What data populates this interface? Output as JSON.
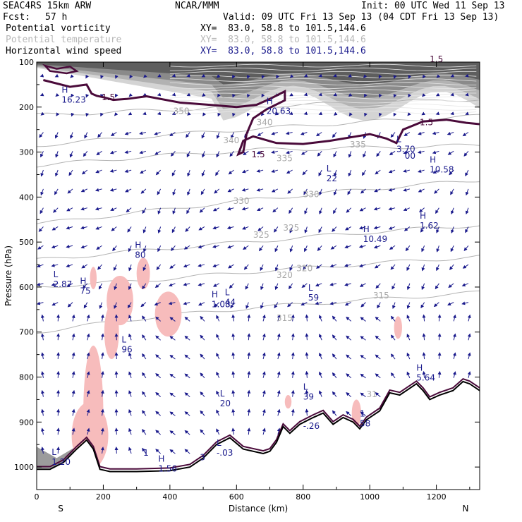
{
  "header": {
    "model": "SEAC4RS 15km ARW",
    "org": "NCAR/MMM",
    "init": "Init: 00 UTC Wed 11 Sep 13",
    "fcst_label": "Fcst:",
    "fcst_value": "57 h",
    "valid": "Valid: 09 UTC Fri 13 Sep 13 (04 CDT Fri 13 Sep 13)",
    "fields": [
      {
        "name": "Potential vorticity",
        "xy": "XY=  83.0, 58.8 to 101.5,144.6",
        "color": "#000000"
      },
      {
        "name": "Potential temperature",
        "xy": "XY=  83.0, 58.8 to 101.5,144.6",
        "color": "#b8b8b8"
      },
      {
        "name": "Horizontal wind speed",
        "xy": "XY=  83.0, 58.8 to 101.5,144.6",
        "color": "#1a1a8c"
      }
    ]
  },
  "chart_data": {
    "type": "cross-section",
    "xlabel": "Distance (km)",
    "ylabel": "Pressure (hPa)",
    "xlim": [
      0,
      1330
    ],
    "ylim": [
      1050,
      100
    ],
    "x_ticks": [
      0,
      200,
      400,
      600,
      800,
      1000,
      1200
    ],
    "y_ticks": [
      100,
      200,
      300,
      400,
      500,
      600,
      700,
      800,
      900,
      1000
    ],
    "end_labels": {
      "left": "S",
      "right": "N"
    },
    "theta_contours": [
      {
        "value": 315,
        "pressures": [
          700,
          668,
          645,
          628,
          612
        ]
      },
      {
        "value": 320,
        "pressures": [
          600,
          585,
          565,
          548,
          532
        ]
      },
      {
        "value": 325,
        "pressures": [
          540,
          518,
          498,
          478,
          462
        ]
      },
      {
        "value": 330,
        "pressures": [
          460,
          432,
          405,
          382,
          362
        ]
      },
      {
        "value": 335,
        "pressures": [
          330,
          310,
          295,
          290,
          285
        ]
      },
      {
        "value": 340,
        "pressures": [
          285,
          265,
          248,
          232,
          220
        ]
      },
      {
        "value": 350,
        "pressures": [
          218,
          208,
          198,
          190,
          182
        ]
      }
    ],
    "theta_labels": [
      {
        "text": "350",
        "x": 410,
        "p": 215
      },
      {
        "text": "340",
        "x": 560,
        "p": 280
      },
      {
        "text": "340",
        "x": 660,
        "p": 240
      },
      {
        "text": "335",
        "x": 720,
        "p": 320
      },
      {
        "text": "335",
        "x": 940,
        "p": 290
      },
      {
        "text": "330",
        "x": 590,
        "p": 415
      },
      {
        "text": "330",
        "x": 800,
        "p": 400
      },
      {
        "text": "325",
        "x": 650,
        "p": 490
      },
      {
        "text": "325",
        "x": 740,
        "p": 475
      },
      {
        "text": "320",
        "x": 720,
        "p": 580
      },
      {
        "text": "320",
        "x": 780,
        "p": 565
      },
      {
        "text": "315",
        "x": 720,
        "p": 675
      },
      {
        "text": "315",
        "x": 1010,
        "p": 625
      },
      {
        "text": "31",
        "x": 990,
        "p": 845
      }
    ],
    "pv_labels": [
      {
        "text": "1.5",
        "x": 195,
        "p": 185
      },
      {
        "text": "1.5",
        "x": 645,
        "p": 312
      },
      {
        "text": "1.5",
        "x": 1150,
        "p": 240
      },
      {
        "text": "1.5",
        "x": 1180,
        "p": 100
      }
    ],
    "hl_markers": [
      {
        "letter": "H",
        "value": "16.23",
        "x": 75,
        "p": 190
      },
      {
        "letter": "H",
        "value": "20.63",
        "x": 690,
        "p": 215
      },
      {
        "letter": "L",
        "value": "3.70",
        "x": 1080,
        "p": 300
      },
      {
        "letter": "",
        "value": "00",
        "x": 1105,
        "p": 315
      },
      {
        "letter": "H",
        "value": "10.58",
        "x": 1180,
        "p": 345
      },
      {
        "letter": "L",
        "value": "22",
        "x": 870,
        "p": 365
      },
      {
        "letter": "H",
        "value": "1.62",
        "x": 1150,
        "p": 470
      },
      {
        "letter": "H",
        "value": "10.49",
        "x": 980,
        "p": 500
      },
      {
        "letter": "H",
        "value": "80",
        "x": 295,
        "p": 535
      },
      {
        "letter": "L",
        "value": "2.87",
        "x": 50,
        "p": 600
      },
      {
        "letter": "H",
        "value": "75",
        "x": 130,
        "p": 615
      },
      {
        "letter": "H",
        "value": "1.08",
        "x": 525,
        "p": 645
      },
      {
        "letter": "L",
        "value": "44",
        "x": 565,
        "p": 640
      },
      {
        "letter": "L",
        "value": "59",
        "x": 815,
        "p": 630
      },
      {
        "letter": "L",
        "value": "96",
        "x": 255,
        "p": 745
      },
      {
        "letter": "H",
        "value": "5.64",
        "x": 1140,
        "p": 808
      },
      {
        "letter": "L",
        "value": "20",
        "x": 550,
        "p": 865
      },
      {
        "letter": "L",
        "value": "39",
        "x": 800,
        "p": 850
      },
      {
        "letter": "",
        "value": "-.26",
        "x": 800,
        "p": 915
      },
      {
        "letter": "1",
        "value": "58",
        "x": 970,
        "p": 910
      },
      {
        "letter": "L",
        "value": "-.03",
        "x": 540,
        "p": 975
      },
      {
        "letter": "L",
        "value": "1.20",
        "x": 45,
        "p": 995
      },
      {
        "letter": "H",
        "value": "1.56",
        "x": 365,
        "p": 1010
      },
      {
        "letter": "",
        "value": "3",
        "x": 490,
        "p": 985
      },
      {
        "letter": "",
        "value": "1",
        "x": 320,
        "p": 975
      }
    ],
    "pv_1_5_contour": [
      [
        20,
        140
      ],
      [
        100,
        155
      ],
      [
        150,
        150
      ],
      [
        165,
        170
      ],
      [
        180,
        175
      ],
      [
        200,
        178
      ],
      [
        230,
        184
      ],
      [
        270,
        182
      ],
      [
        330,
        176
      ],
      [
        430,
        190
      ],
      [
        520,
        195
      ],
      [
        600,
        200
      ],
      [
        660,
        195
      ],
      [
        700,
        182
      ],
      [
        745,
        165
      ],
      [
        745,
        185
      ],
      [
        690,
        205
      ],
      [
        650,
        225
      ],
      [
        630,
        260
      ],
      [
        620,
        300
      ],
      [
        605,
        305
      ],
      [
        620,
        275
      ],
      [
        650,
        265
      ],
      [
        720,
        280
      ],
      [
        800,
        282
      ],
      [
        880,
        275
      ],
      [
        960,
        265
      ],
      [
        1000,
        260
      ],
      [
        1050,
        270
      ],
      [
        1080,
        280
      ],
      [
        1100,
        250
      ],
      [
        1160,
        232
      ],
      [
        1230,
        228
      ],
      [
        1290,
        235
      ],
      [
        1330,
        238
      ]
    ],
    "terrain": [
      [
        0,
        1005
      ],
      [
        40,
        1005
      ],
      [
        80,
        990
      ],
      [
        120,
        960
      ],
      [
        150,
        940
      ],
      [
        170,
        960
      ],
      [
        190,
        1005
      ],
      [
        220,
        1010
      ],
      [
        300,
        1010
      ],
      [
        400,
        1008
      ],
      [
        460,
        1000
      ],
      [
        500,
        980
      ],
      [
        540,
        950
      ],
      [
        580,
        935
      ],
      [
        620,
        960
      ],
      [
        680,
        970
      ],
      [
        700,
        965
      ],
      [
        720,
        945
      ],
      [
        740,
        910
      ],
      [
        760,
        925
      ],
      [
        790,
        905
      ],
      [
        830,
        890
      ],
      [
        860,
        880
      ],
      [
        890,
        905
      ],
      [
        920,
        890
      ],
      [
        950,
        900
      ],
      [
        970,
        915
      ],
      [
        990,
        895
      ],
      [
        1030,
        875
      ],
      [
        1060,
        835
      ],
      [
        1090,
        840
      ],
      [
        1110,
        830
      ],
      [
        1140,
        815
      ],
      [
        1160,
        830
      ],
      [
        1180,
        850
      ],
      [
        1210,
        840
      ],
      [
        1250,
        830
      ],
      [
        1280,
        810
      ],
      [
        1300,
        815
      ],
      [
        1330,
        830
      ]
    ],
    "wind_speed_shading": "dark gray bands aloft (~100-200 hPa), light near surface",
    "positive_shading_color": "#f7bcbc"
  }
}
